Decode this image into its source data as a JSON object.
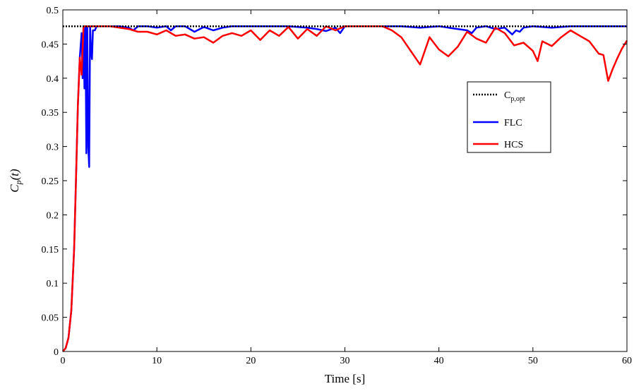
{
  "chart_data": {
    "type": "line",
    "xlabel": "Time [s]",
    "ylabel": {
      "main": "C",
      "sub": "p",
      "rest": "(t)"
    },
    "xlim": [
      0,
      60
    ],
    "ylim": [
      0,
      0.5
    ],
    "x_ticks": [
      "0",
      "10",
      "20",
      "30",
      "40",
      "50",
      "60"
    ],
    "y_ticks": [
      "0",
      "0.05",
      "0.1",
      "0.15",
      "0.2",
      "0.25",
      "0.3",
      "0.35",
      "0.4",
      "0.45",
      "0.5"
    ],
    "grid": false,
    "legend_position": "right",
    "series": [
      {
        "name": "C",
        "name_sub": "p,opt",
        "color": "#000000",
        "style": "dotted",
        "x": [
          0,
          60
        ],
        "y": [
          0.476,
          0.476
        ]
      },
      {
        "name": "FLC",
        "color": "#0000ff",
        "style": "solid",
        "x": [
          0,
          0.3,
          0.6,
          0.9,
          1.2,
          1.4,
          1.6,
          1.8,
          2.0,
          2.1,
          2.2,
          2.3,
          2.4,
          2.5,
          2.6,
          2.7,
          2.8,
          2.9,
          3.0,
          3.1,
          3.2,
          3.4,
          3.6,
          4.0,
          5.0,
          6.0,
          7.0,
          7.5,
          8.0,
          9.0,
          10.0,
          11.0,
          11.5,
          12.0,
          13.0,
          14.0,
          15.0,
          16.0,
          17.0,
          18.0,
          20.0,
          22.0,
          24.0,
          26.0,
          27.0,
          28.0,
          29.0,
          29.5,
          30.0,
          31.0,
          32.0,
          34.0,
          36.0,
          38.0,
          40.0,
          41.0,
          42.0,
          43.0,
          43.5,
          44.0,
          45.0,
          46.0,
          47.0,
          47.8,
          48.2,
          48.6,
          49.0,
          50.0,
          52.0,
          54.0,
          56.0,
          58.0,
          60.0
        ],
        "y": [
          0,
          0.005,
          0.02,
          0.06,
          0.15,
          0.25,
          0.36,
          0.43,
          0.466,
          0.4,
          0.476,
          0.385,
          0.476,
          0.29,
          0.476,
          0.3,
          0.27,
          0.476,
          0.44,
          0.428,
          0.47,
          0.47,
          0.476,
          0.476,
          0.476,
          0.476,
          0.474,
          0.47,
          0.476,
          0.476,
          0.474,
          0.476,
          0.47,
          0.476,
          0.476,
          0.468,
          0.475,
          0.47,
          0.474,
          0.476,
          0.476,
          0.476,
          0.476,
          0.474,
          0.472,
          0.469,
          0.474,
          0.466,
          0.476,
          0.476,
          0.476,
          0.476,
          0.476,
          0.474,
          0.476,
          0.474,
          0.472,
          0.47,
          0.466,
          0.474,
          0.476,
          0.472,
          0.474,
          0.464,
          0.47,
          0.468,
          0.474,
          0.476,
          0.474,
          0.476,
          0.476,
          0.476,
          0.476
        ]
      },
      {
        "name": "HCS",
        "color": "#ff0000",
        "style": "solid",
        "x": [
          0,
          0.3,
          0.6,
          0.9,
          1.2,
          1.4,
          1.6,
          1.8,
          2.0,
          2.2,
          2.6,
          3.0,
          4.0,
          5.0,
          6.0,
          7.0,
          8.0,
          9.0,
          10.0,
          11.0,
          12.0,
          13.0,
          14.0,
          15.0,
          16.0,
          17.0,
          18.0,
          19.0,
          20.0,
          21.0,
          22.0,
          23.0,
          24.0,
          25.0,
          26.0,
          27.0,
          28.0,
          29.0,
          30.0,
          31.0,
          32.0,
          33.0,
          34.0,
          35.0,
          36.0,
          37.0,
          38.0,
          38.5,
          39.0,
          40.0,
          41.0,
          42.0,
          43.0,
          44.0,
          45.0,
          46.0,
          47.0,
          48.0,
          49.0,
          50.0,
          50.5,
          51.0,
          52.0,
          53.0,
          54.0,
          55.0,
          56.0,
          57.0,
          57.5,
          58.0,
          58.5,
          59.0,
          59.5,
          60.0
        ],
        "y": [
          0,
          0.005,
          0.02,
          0.06,
          0.15,
          0.25,
          0.36,
          0.43,
          0.405,
          0.476,
          0.476,
          0.476,
          0.476,
          0.476,
          0.474,
          0.472,
          0.468,
          0.468,
          0.464,
          0.47,
          0.462,
          0.464,
          0.458,
          0.46,
          0.452,
          0.462,
          0.466,
          0.462,
          0.47,
          0.456,
          0.47,
          0.462,
          0.475,
          0.458,
          0.472,
          0.462,
          0.476,
          0.47,
          0.476,
          0.476,
          0.476,
          0.476,
          0.476,
          0.47,
          0.46,
          0.44,
          0.42,
          0.44,
          0.46,
          0.442,
          0.432,
          0.446,
          0.468,
          0.458,
          0.452,
          0.474,
          0.466,
          0.448,
          0.452,
          0.44,
          0.425,
          0.454,
          0.447,
          0.46,
          0.47,
          0.462,
          0.454,
          0.436,
          0.434,
          0.396,
          0.414,
          0.43,
          0.444,
          0.455
        ]
      }
    ]
  }
}
